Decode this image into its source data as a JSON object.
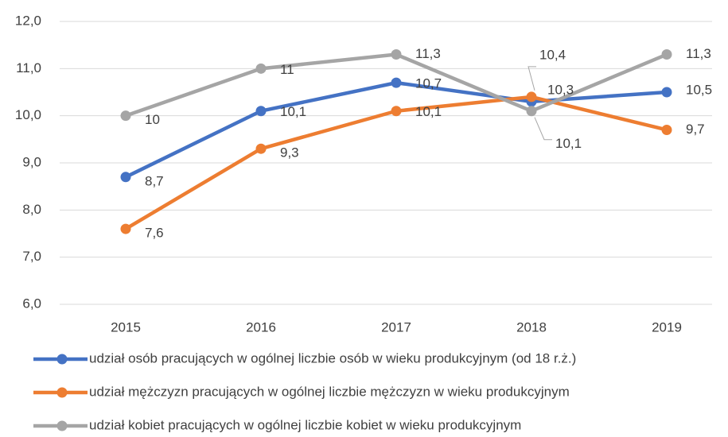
{
  "chart_data": {
    "type": "line",
    "categories": [
      "2015",
      "2016",
      "2017",
      "2018",
      "2019"
    ],
    "ylim": [
      6,
      12
    ],
    "yticks": [
      {
        "value": 6,
        "label": "6,0"
      },
      {
        "value": 7,
        "label": "7,0"
      },
      {
        "value": 8,
        "label": "8,0"
      },
      {
        "value": 9,
        "label": "9,0"
      },
      {
        "value": 10,
        "label": "10,0"
      },
      {
        "value": 11,
        "label": "11,0"
      },
      {
        "value": 12,
        "label": "12,0"
      }
    ],
    "grid": true,
    "legend": "bottom",
    "series": [
      {
        "name": "udział osób pracujących w ogólnej liczbie osób w wieku produkcyjnym (od 18 r.ż.)",
        "color": "#4472c4",
        "values": [
          8.7,
          10.1,
          10.7,
          10.3,
          10.5
        ],
        "value_labels": [
          "8,7",
          "10,1",
          "10,7",
          "10,3",
          "10,5"
        ]
      },
      {
        "name": "udział mężczyzn pracujących w ogólnej liczbie mężczyzn w wieku produkcyjnym",
        "color": "#ed7d31",
        "values": [
          7.6,
          9.3,
          10.1,
          10.4,
          9.7
        ],
        "value_labels": [
          "7,6",
          "9,3",
          "10,1",
          "10,4",
          "9,7"
        ]
      },
      {
        "name": "udział kobiet pracujących w ogólnej liczbie kobiet w wieku produkcyjnym",
        "color": "#a5a5a5",
        "values": [
          10,
          11,
          11.3,
          10.1,
          11.3
        ],
        "value_labels": [
          "10",
          "11",
          "11,3",
          "10,1",
          "11,3"
        ]
      }
    ]
  }
}
